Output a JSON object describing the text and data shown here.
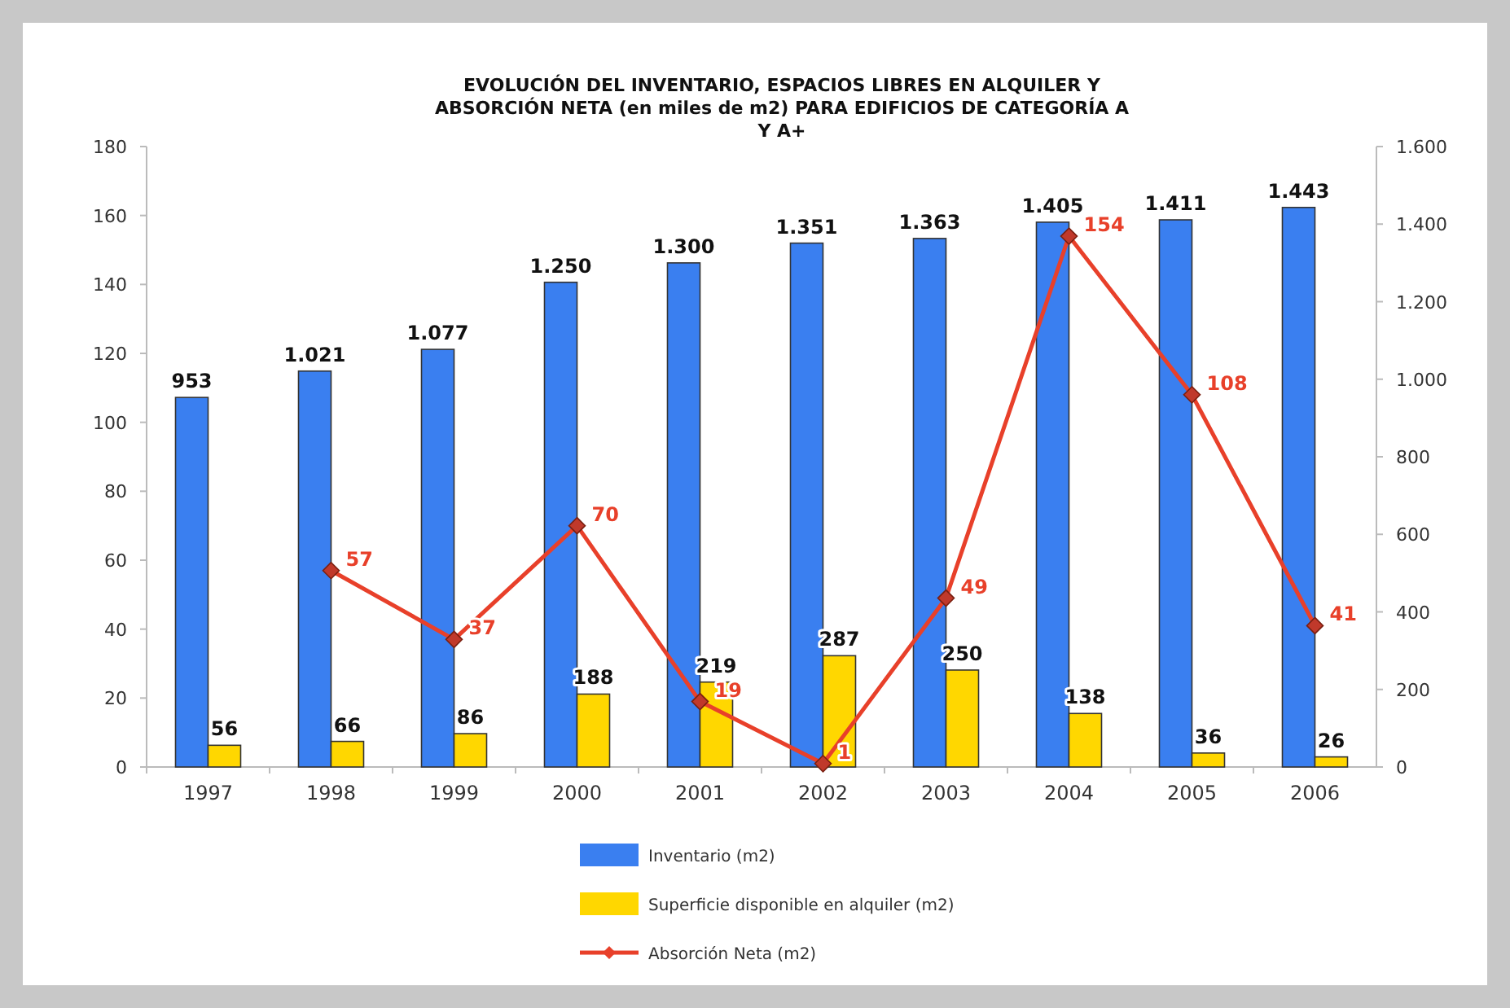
{
  "chart_data": {
    "type": "bar",
    "title": "EVOLUCIÓN DEL INVENTARIO, ESPACIOS LIBRES EN ALQUILER Y ABSORCIÓN NETA (en miles de m2) PARA EDIFICIOS DE CATEGORÍA A Y A+",
    "categories": [
      "1997",
      "1998",
      "1999",
      "2000",
      "2001",
      "2002",
      "2003",
      "2004",
      "2005",
      "2006"
    ],
    "series": [
      {
        "name": "Inventario (m2)",
        "axis": "y2",
        "color": "#3a7ff0",
        "values": [
          953,
          1021,
          1077,
          1250,
          1300,
          1351,
          1363,
          1405,
          1411,
          1443
        ],
        "value_labels": [
          "953",
          "1.021",
          "1.077",
          "1.250",
          "1.300",
          "1.351",
          "1.363",
          "1.405",
          "1.411",
          "1.443"
        ]
      },
      {
        "name": "Superficie disponible en alquiler (m2)",
        "axis": "y2",
        "color": "#ffd700",
        "values": [
          56,
          66,
          86,
          188,
          219,
          287,
          250,
          138,
          36,
          26
        ],
        "value_labels": [
          "56",
          "66",
          "86",
          "188",
          "219",
          "287",
          "250",
          "138",
          "36",
          "26"
        ]
      },
      {
        "name": "Absorción Neta (m2)",
        "type": "line",
        "color": "#e8402a",
        "marker": "diamond",
        "values": [
          null,
          57,
          37,
          70,
          19,
          1,
          49,
          154,
          108,
          41
        ],
        "value_labels": [
          null,
          "57",
          "37",
          "70",
          "19",
          "1",
          "49",
          "154",
          "108",
          "41"
        ]
      }
    ],
    "ylim": [
      0,
      180
    ],
    "yticks": [
      0,
      20,
      40,
      60,
      80,
      100,
      120,
      140,
      160,
      180
    ],
    "y2lim": [
      0,
      1600
    ],
    "y2ticks": [
      {
        "value": 0,
        "label": "0"
      },
      {
        "value": 200,
        "label": "200"
      },
      {
        "value": 400,
        "label": "400"
      },
      {
        "value": 600,
        "label": "600"
      },
      {
        "value": 800,
        "label": "800"
      },
      {
        "value": 1000,
        "label": "1.000"
      },
      {
        "value": 1200,
        "label": "1.200"
      },
      {
        "value": 1400,
        "label": "1.400"
      },
      {
        "value": 1600,
        "label": "1.600"
      }
    ],
    "grid": false,
    "legend": "bottom"
  }
}
